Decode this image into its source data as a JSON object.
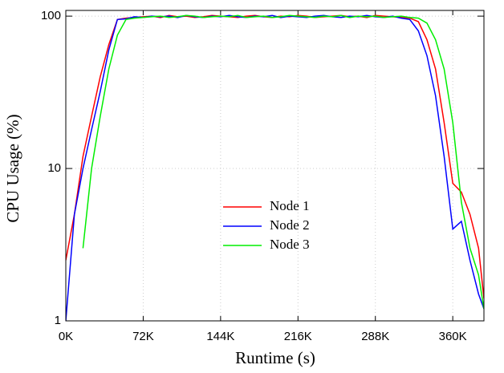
{
  "chart_data": {
    "type": "line",
    "xlabel": "Runtime (s)",
    "ylabel": "CPU Usage (%)",
    "yscale": "log",
    "grid": true,
    "legend_position": "center",
    "xlim": [
      0,
      389000
    ],
    "ylim": [
      1,
      109
    ],
    "xticks": [
      {
        "value": 0,
        "label": "0K"
      },
      {
        "value": 72000,
        "label": "72K"
      },
      {
        "value": 144000,
        "label": "144K"
      },
      {
        "value": 216000,
        "label": "216K"
      },
      {
        "value": 288000,
        "label": "288K"
      },
      {
        "value": 360000,
        "label": "360K"
      }
    ],
    "yticks": [
      1,
      10,
      100
    ],
    "x": [
      0,
      8000,
      16000,
      24000,
      32000,
      40000,
      48000,
      56000,
      64000,
      72000,
      80000,
      88000,
      96000,
      104000,
      112000,
      120000,
      128000,
      136000,
      144000,
      152000,
      160000,
      168000,
      176000,
      184000,
      192000,
      200000,
      208000,
      216000,
      224000,
      232000,
      240000,
      248000,
      256000,
      264000,
      272000,
      280000,
      288000,
      296000,
      304000,
      312000,
      320000,
      328000,
      336000,
      344000,
      352000,
      360000,
      368000,
      376000,
      384000,
      389000
    ],
    "series": [
      {
        "name": "Node 1",
        "color": "#ff0000",
        "values": [
          2.5,
          5,
          12,
          22,
          40,
          65,
          95,
          97,
          98,
          99,
          100,
          98,
          101,
          99,
          100,
          98,
          99,
          101,
          100,
          99,
          98,
          100,
          101,
          99,
          98,
          100,
          99,
          101,
          100,
          98,
          99,
          100,
          101,
          99,
          100,
          98,
          101,
          100,
          99,
          98,
          97,
          92,
          70,
          45,
          20,
          8,
          7,
          5,
          3,
          1.4
        ]
      },
      {
        "name": "Node 2",
        "color": "#0000ff",
        "values": [
          1,
          5,
          10,
          18,
          32,
          60,
          95,
          96,
          99,
          98,
          100,
          99,
          100,
          98,
          101,
          99,
          98,
          100,
          99,
          101,
          99,
          98,
          100,
          99,
          101,
          98,
          100,
          99,
          98,
          100,
          101,
          99,
          98,
          100,
          99,
          101,
          99,
          98,
          100,
          97,
          95,
          80,
          55,
          30,
          12,
          4,
          4.5,
          2.5,
          1.5,
          1.2
        ]
      },
      {
        "name": "Node 3",
        "color": "#00ee00",
        "values": [
          null,
          null,
          3,
          10,
          22,
          45,
          75,
          95,
          97,
          98,
          99,
          100,
          98,
          99,
          101,
          100,
          98,
          99,
          100,
          99,
          101,
          98,
          99,
          100,
          98,
          99,
          101,
          100,
          99,
          98,
          100,
          99,
          101,
          98,
          100,
          99,
          100,
          98,
          99,
          100,
          98,
          97,
          90,
          70,
          45,
          20,
          6,
          3,
          2,
          1.2
        ]
      }
    ]
  }
}
